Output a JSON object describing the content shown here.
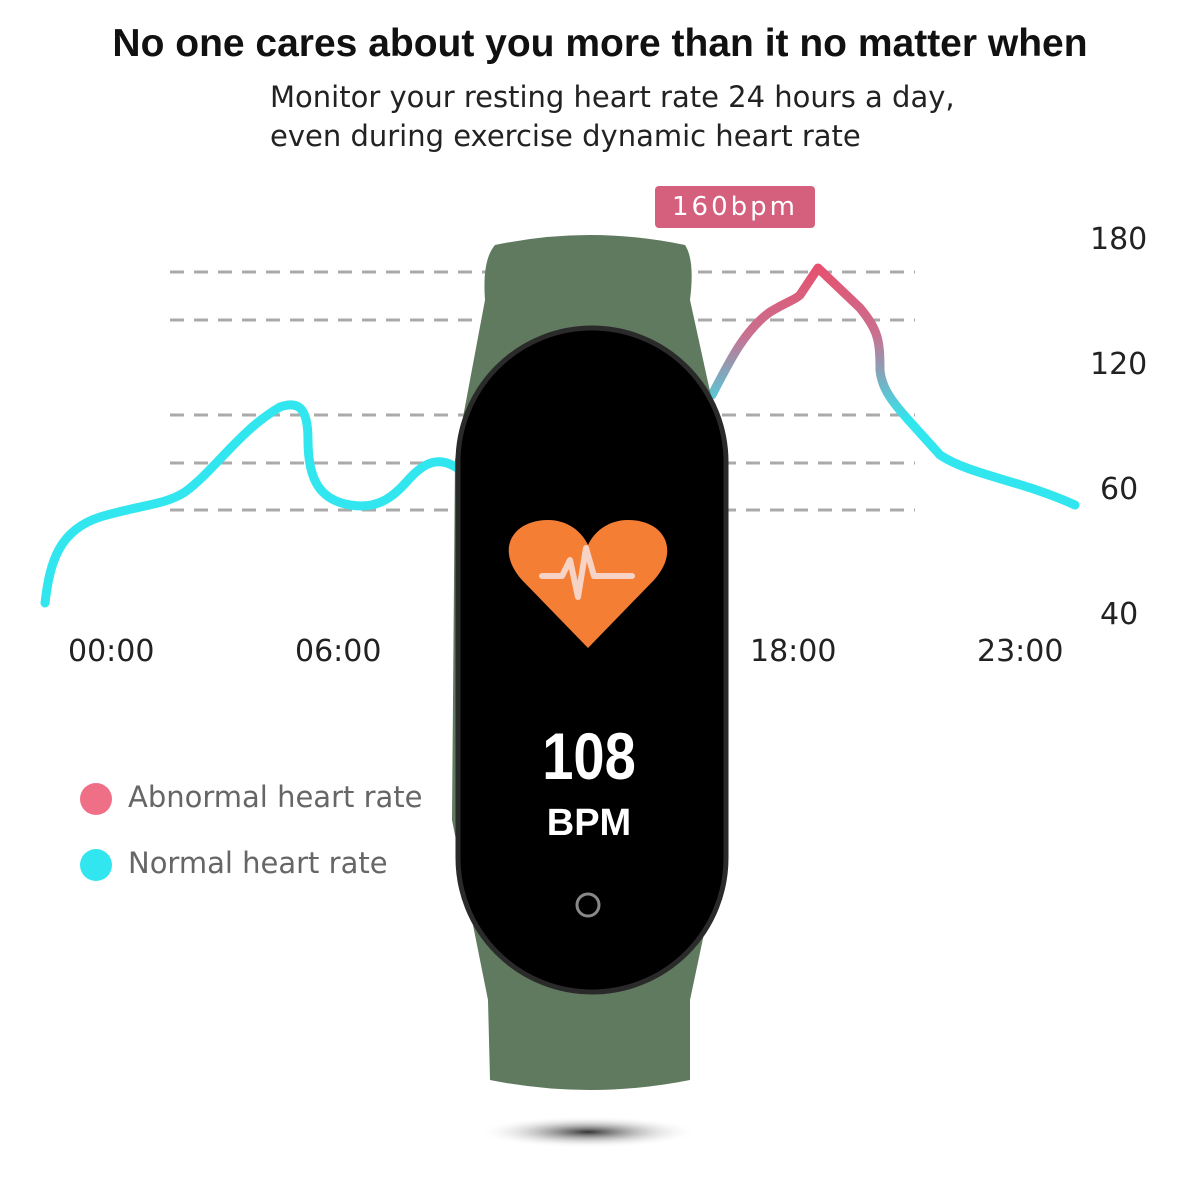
{
  "headline": "No one cares about you more than it no matter when",
  "subtitle": [
    "Monitor your resting heart rate 24 hours a day,",
    "even during exercise dynamic heart rate"
  ],
  "peak_badge": "160bpm",
  "y_ticks": [
    "180",
    "120",
    "60",
    "40"
  ],
  "x_ticks": [
    "00:00",
    "06:00",
    "18:00",
    "23:00"
  ],
  "legend": [
    {
      "label": "Abnormal heart rate",
      "color": "#ef6f86"
    },
    {
      "label": "Normal heart rate",
      "color": "#31e6ee"
    }
  ],
  "device": {
    "reading": "108",
    "unit": "BPM",
    "band_color": "#5f7a5e",
    "heart_color": "#f57e35"
  }
}
